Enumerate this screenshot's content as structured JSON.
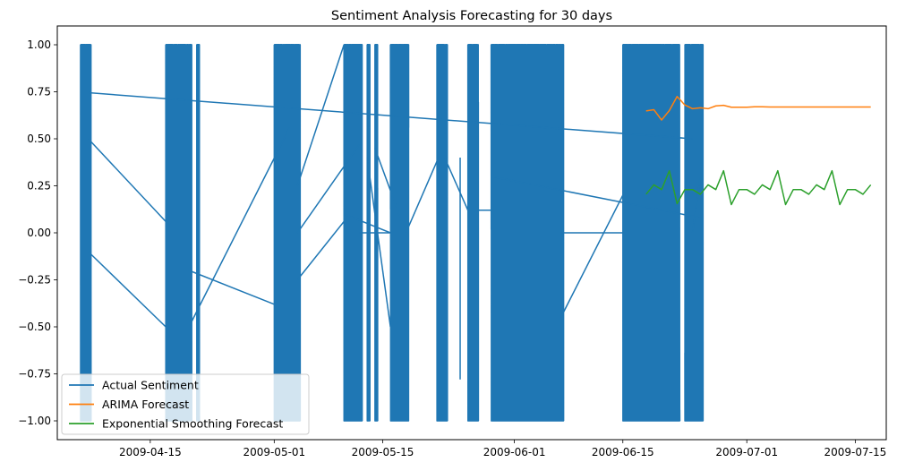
{
  "chart_data": {
    "type": "line",
    "title": "Sentiment Analysis Forecasting for 30 days",
    "xlabel": "",
    "ylabel": "",
    "x_axis_type": "date",
    "xlim": [
      "2009-04-03",
      "2009-07-19"
    ],
    "ylim": [
      -1.1,
      1.1
    ],
    "x_ticks": [
      "2009-04-15",
      "2009-05-01",
      "2009-05-15",
      "2009-06-01",
      "2009-06-15",
      "2009-07-01",
      "2009-07-15"
    ],
    "y_ticks": [
      -1.0,
      -0.75,
      -0.5,
      -0.25,
      0.0,
      0.25,
      0.5,
      0.75,
      1.0
    ],
    "y_tick_labels": [
      "−1.00",
      "−0.75",
      "−0.50",
      "−0.25",
      "0.00",
      "0.25",
      "0.50",
      "0.75",
      "1.00"
    ],
    "grid": false,
    "legend_position": "lower-left",
    "series": [
      {
        "name": "Actual Sentiment",
        "color": "#1f77b4",
        "render": "dense",
        "dense_blocks": [
          {
            "start": "2009-04-06",
            "end": "2009-04-07"
          },
          {
            "start": "2009-04-17",
            "end": "2009-04-20"
          },
          {
            "start": "2009-04-21",
            "end": "2009-04-21"
          },
          {
            "start": "2009-05-01",
            "end": "2009-05-04"
          },
          {
            "start": "2009-05-10",
            "end": "2009-05-12"
          },
          {
            "start": "2009-05-13",
            "end": "2009-05-13"
          },
          {
            "start": "2009-05-14",
            "end": "2009-05-14"
          },
          {
            "start": "2009-05-16",
            "end": "2009-05-18"
          },
          {
            "start": "2009-05-22",
            "end": "2009-05-23"
          },
          {
            "start": "2009-05-26",
            "end": "2009-05-27"
          },
          {
            "start": "2009-05-29",
            "end": "2009-06-07"
          },
          {
            "start": "2009-06-15",
            "end": "2009-06-22"
          },
          {
            "start": "2009-06-23",
            "end": "2009-06-25"
          }
        ],
        "connector_segments": [
          [
            [
              "2009-04-07",
              0.745
            ],
            [
              "2009-06-24",
              0.5
            ]
          ],
          [
            [
              "2009-04-07",
              0.5
            ],
            [
              "2009-04-17",
              0.06
            ]
          ],
          [
            [
              "2009-04-07",
              -0.1
            ],
            [
              "2009-04-17",
              -0.5
            ]
          ],
          [
            [
              "2009-04-20",
              -0.2
            ],
            [
              "2009-05-01",
              -0.38
            ]
          ],
          [
            [
              "2009-04-20",
              -0.5
            ],
            [
              "2009-05-03",
              0.56
            ]
          ],
          [
            [
              "2009-05-04",
              -0.25
            ],
            [
              "2009-05-10",
              0.06
            ]
          ],
          [
            [
              "2009-05-04",
              0.0
            ],
            [
              "2009-05-12",
              0.47
            ]
          ],
          [
            [
              "2009-05-04",
              0.25
            ],
            [
              "2009-05-10",
              1.0
            ]
          ],
          [
            [
              "2009-05-10",
              0.1
            ],
            [
              "2009-05-16",
              0.0
            ]
          ],
          [
            [
              "2009-05-12",
              0.0
            ],
            [
              "2009-05-16",
              0.0
            ]
          ],
          [
            [
              "2009-05-13",
              0.4
            ],
            [
              "2009-05-16",
              -0.5
            ]
          ],
          [
            [
              "2009-05-14",
              0.45
            ],
            [
              "2009-05-18",
              0.0
            ]
          ],
          [
            [
              "2009-05-18",
              0.0
            ],
            [
              "2009-05-22",
              0.38
            ]
          ],
          [
            [
              "2009-05-23",
              0.4
            ],
            [
              "2009-05-26",
              0.12
            ]
          ],
          [
            [
              "2009-05-26",
              0.12
            ],
            [
              "2009-05-29",
              0.12
            ]
          ],
          [
            [
              "2009-05-25",
              -0.78
            ],
            [
              "2009-05-25",
              0.4
            ]
          ],
          [
            [
              "2009-06-07",
              0.0
            ],
            [
              "2009-06-15",
              0.0
            ]
          ],
          [
            [
              "2009-06-07",
              -0.45
            ],
            [
              "2009-06-15",
              0.2
            ]
          ],
          [
            [
              "2009-05-29",
              0.3
            ],
            [
              "2009-06-25",
              0.08
            ]
          ],
          [
            [
              "2009-06-25",
              0.3
            ],
            [
              "2009-06-24",
              0.0
            ]
          ]
        ]
      },
      {
        "name": "ARIMA Forecast",
        "color": "#ff7f0e",
        "x": [
          "2009-06-18",
          "2009-06-19",
          "2009-06-20",
          "2009-06-21",
          "2009-06-22",
          "2009-06-23",
          "2009-06-24",
          "2009-06-25",
          "2009-06-26",
          "2009-06-27",
          "2009-06-28",
          "2009-06-29",
          "2009-06-30",
          "2009-07-01",
          "2009-07-02",
          "2009-07-03",
          "2009-07-04",
          "2009-07-05",
          "2009-07-06",
          "2009-07-07",
          "2009-07-08",
          "2009-07-09",
          "2009-07-10",
          "2009-07-11",
          "2009-07-12",
          "2009-07-13",
          "2009-07-14",
          "2009-07-15",
          "2009-07-16",
          "2009-07-17"
        ],
        "y": [
          0.648,
          0.655,
          0.6,
          0.65,
          0.725,
          0.68,
          0.66,
          0.665,
          0.66,
          0.675,
          0.678,
          0.668,
          0.668,
          0.668,
          0.67,
          0.67,
          0.669,
          0.669,
          0.669,
          0.669,
          0.669,
          0.669,
          0.669,
          0.669,
          0.669,
          0.669,
          0.669,
          0.669,
          0.669,
          0.669
        ]
      },
      {
        "name": "Exponential Smoothing Forecast",
        "color": "#2ca02c",
        "x": [
          "2009-06-18",
          "2009-06-19",
          "2009-06-20",
          "2009-06-21",
          "2009-06-22",
          "2009-06-23",
          "2009-06-24",
          "2009-06-25",
          "2009-06-26",
          "2009-06-27",
          "2009-06-28",
          "2009-06-29",
          "2009-06-30",
          "2009-07-01",
          "2009-07-02",
          "2009-07-03",
          "2009-07-04",
          "2009-07-05",
          "2009-07-06",
          "2009-07-07",
          "2009-07-08",
          "2009-07-09",
          "2009-07-10",
          "2009-07-11",
          "2009-07-12",
          "2009-07-13",
          "2009-07-14",
          "2009-07-15",
          "2009-07-16",
          "2009-07-17"
        ],
        "y": [
          0.205,
          0.255,
          0.23,
          0.33,
          0.155,
          0.23,
          0.23,
          0.205,
          0.255,
          0.23,
          0.33,
          0.15,
          0.23,
          0.23,
          0.205,
          0.255,
          0.23,
          0.33,
          0.15,
          0.23,
          0.23,
          0.205,
          0.255,
          0.23,
          0.33,
          0.15,
          0.23,
          0.23,
          0.205,
          0.255
        ]
      }
    ]
  }
}
